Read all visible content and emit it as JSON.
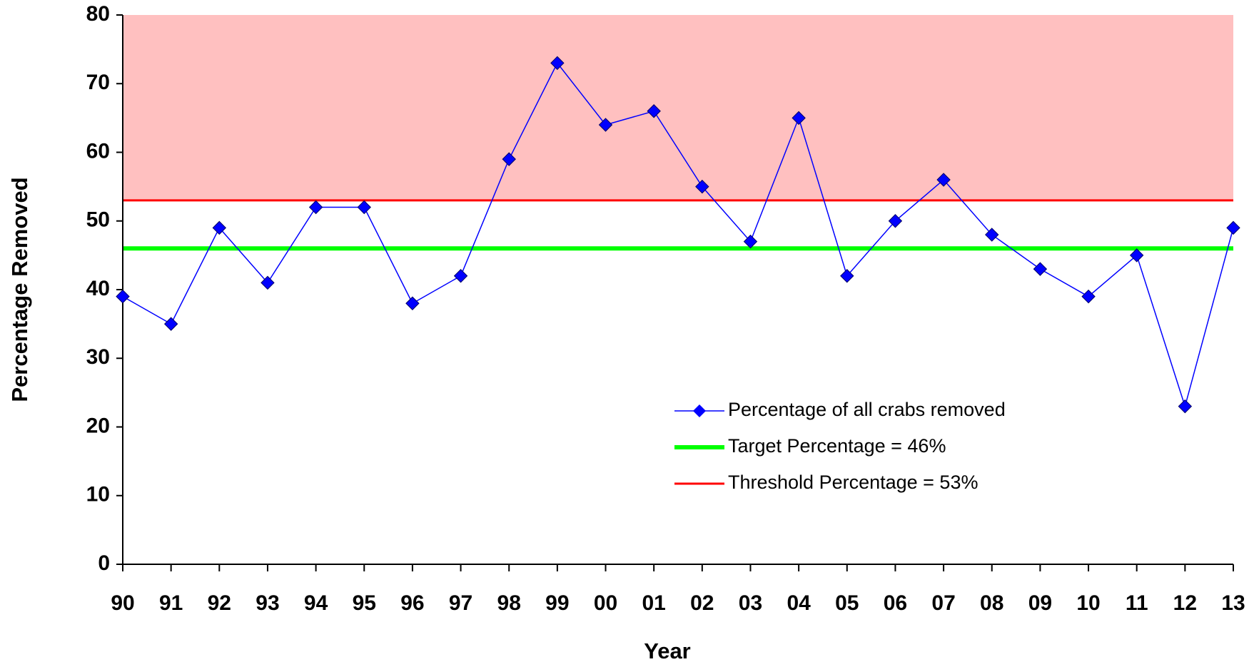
{
  "chart_data": {
    "type": "line",
    "x_label": "Year",
    "y_label": "Percentage Removed",
    "categories": [
      "90",
      "91",
      "92",
      "93",
      "94",
      "95",
      "96",
      "97",
      "98",
      "99",
      "00",
      "01",
      "02",
      "03",
      "04",
      "05",
      "06",
      "07",
      "08",
      "09",
      "10",
      "11",
      "12",
      "13"
    ],
    "series": [
      {
        "name": "Percentage of all crabs removed",
        "color": "#0000ff",
        "values": [
          39,
          35,
          49,
          41,
          52,
          52,
          38,
          42,
          59,
          73,
          64,
          66,
          55,
          47,
          65,
          42,
          50,
          56,
          48,
          43,
          39,
          45,
          23,
          49
        ]
      }
    ],
    "reference_lines": [
      {
        "name": "Target Percentage = 46%",
        "value": 46,
        "color": "#00ff00"
      },
      {
        "name": "Threshold Percentage = 53%",
        "value": 53,
        "color": "#ff0000",
        "shade_above": "#ffc0c0"
      }
    ],
    "ylim": [
      0,
      80
    ],
    "yticks": [
      0,
      10,
      20,
      30,
      40,
      50,
      60,
      70,
      80
    ],
    "grid": false
  }
}
